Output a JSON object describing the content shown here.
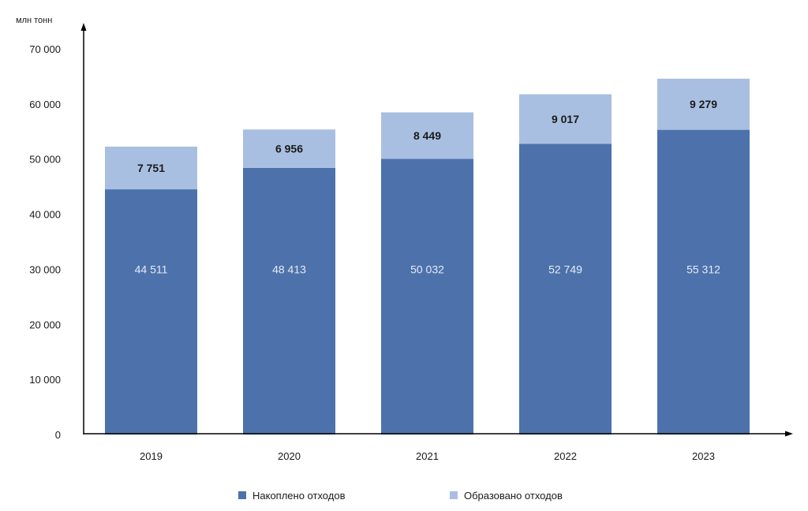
{
  "chart_data": {
    "type": "bar",
    "stacked": true,
    "unit_label": "млн тонн",
    "categories": [
      "2019",
      "2020",
      "2021",
      "2022",
      "2023"
    ],
    "series": [
      {
        "name": "Накоплено отходов",
        "color": "#4d72ab",
        "values": [
          44511,
          48413,
          50032,
          52749,
          55312
        ],
        "value_labels": [
          "44 511",
          "48 413",
          "50 032",
          "52 749",
          "55 312"
        ]
      },
      {
        "name": "Образовано отходов",
        "color": "#a9bfe2",
        "values": [
          7751,
          6956,
          8449,
          9017,
          9279
        ],
        "value_labels": [
          "7 751",
          "6 956",
          "8 449",
          "9 017",
          "9 279"
        ]
      }
    ],
    "ylim": [
      0,
      70000
    ],
    "yticks": [
      0,
      10000,
      20000,
      30000,
      40000,
      50000,
      60000,
      70000
    ],
    "ytick_labels": [
      "0",
      "10 000",
      "20 000",
      "30 000",
      "40 000",
      "50 000",
      "60 000",
      "70 000"
    ],
    "grid": false,
    "legend_position": "bottom"
  }
}
